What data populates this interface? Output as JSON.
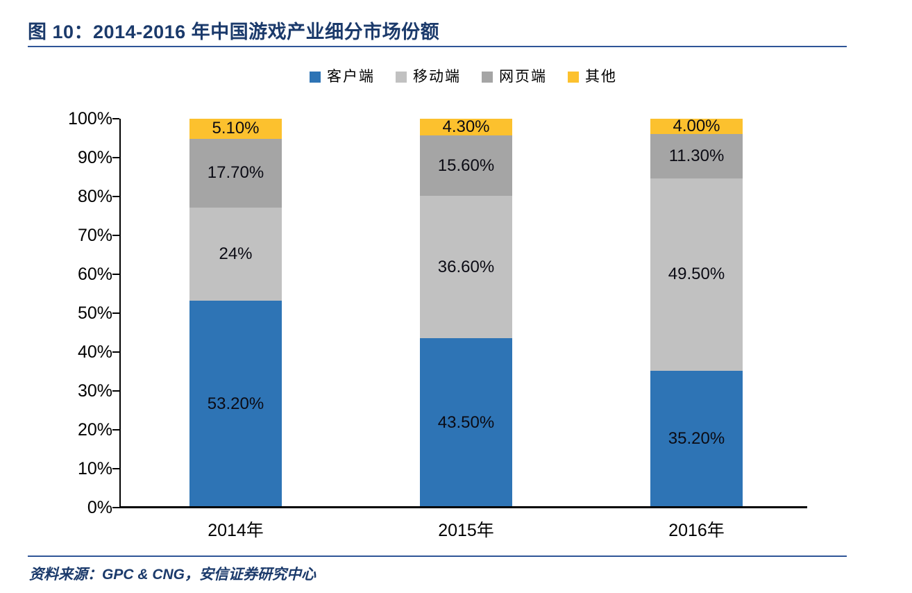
{
  "header": {
    "title": "图 10：2014-2016 年中国游戏产业细分市场份额"
  },
  "footer": {
    "source": "资料来源：GPC & CNG，安信证券研究中心"
  },
  "colors": {
    "accent-navy": "#1B3A6B",
    "rule-blue": "#2F5597",
    "axis-black": "#000000"
  },
  "chart_data": {
    "type": "bar",
    "stacked": true,
    "title": "图 10：2014-2016 年中国游戏产业细分市场份额",
    "categories": [
      "2014年",
      "2015年",
      "2016年"
    ],
    "series": [
      {
        "name": "客户端",
        "color": "#2E74B5",
        "values": [
          53.2,
          43.5,
          35.2
        ],
        "labels": [
          "53.20%",
          "43.50%",
          "35.20%"
        ]
      },
      {
        "name": "移动端",
        "color": "#C1C1C1",
        "values": [
          24.0,
          36.6,
          49.5
        ],
        "labels": [
          "24%",
          "36.60%",
          "49.50%"
        ]
      },
      {
        "name": "网页端",
        "color": "#A5A5A5",
        "values": [
          17.7,
          15.6,
          11.3
        ],
        "labels": [
          "17.70%",
          "15.60%",
          "11.30%"
        ]
      },
      {
        "name": "其他",
        "color": "#FCC12E",
        "values": [
          5.1,
          4.3,
          4.0
        ],
        "labels": [
          "5.10%",
          "4.30%",
          "4.00%"
        ]
      }
    ],
    "ylim": [
      0,
      100
    ],
    "yticks": [
      "100%",
      "90%",
      "80%",
      "70%",
      "60%",
      "50%",
      "40%",
      "30%",
      "20%",
      "10%",
      "0%"
    ],
    "legend_position": "top",
    "grid": false,
    "source": "资料来源：GPC & CNG，安信证券研究中心"
  }
}
